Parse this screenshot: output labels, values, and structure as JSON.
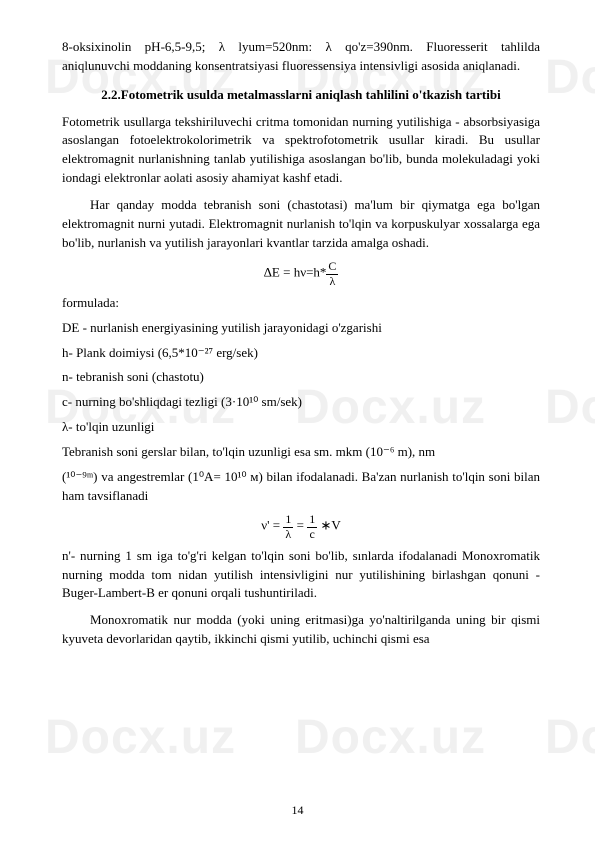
{
  "watermark_text": "Docx.uz",
  "page_number": "14",
  "colors": {
    "text": "#000000",
    "background": "#ffffff",
    "watermark": "rgba(128,128,128,0.12)"
  },
  "typography": {
    "body_font": "Times New Roman",
    "body_size_pt": 13,
    "watermark_font": "Arial",
    "watermark_size_pt": 48
  },
  "p1": "8-oksixinolin pH-6,5-9,5; λ lyum=520nm: λ qo'z=390nm. Fluoresserit tahlilda aniqlunuvchi moddaning konsentratsiyasi fluoressensiya intensivligi asosida aniqlanadi.",
  "heading": "2.2.Fotometrik usulda metalmasslarni aniqlash tahlilini o'tkazish tartibi",
  "p2": "Fotometrik usullarga tekshiriluvechi critma tomonidan nurning yutilishiga - absorbsiyasiga asoslangan fotoelektrokolorimetrik va spektrofotometrik usullar kiradi. Bu usullar elektromagnit nurlanishning tanlab yutilishiga asoslangan bo'lib, bunda molekuladagi yoki iondagi elektronlar aolati asosiy ahamiyat kashf etadi.",
  "p3": "Har qanday modda tebranish soni (chastotasi) ma'lum bir qiymatga ega bo'lgan elektromagnit nurni yutadi. Elektromagnit nurlanish to'lqin va korpuskulyar xossalarga ega bo'lib, nurlanish va yutilish jarayonlari kvantlar tarzida amalga oshadi.",
  "formula1_prefix": "ΔE = hν=h*",
  "formula1_num": "C",
  "formula1_den": "λ",
  "label_formula": "formulada:",
  "def1": "DE - nurlanish energiyasining yutilish jarayonidagi o'zgarishi",
  "def2": "h- Plank doimiysi (6,5*10⁻²⁷ erg/sek)",
  "def3": "n- tebranish soni (chastotu)",
  "def4": "c- nurning bo'shliqdagi tezligi (3·10¹⁰ sm/sek)",
  "def5": "λ- to'lqin uzunligi",
  "def6": "Tebranish soni gerslar bilan, to'lqin uzunligi esa sm. mkm (10⁻⁶ m), nm",
  "def7": "(¹⁰⁻⁹ᵐ) va angestremlar (1⁰A= 10¹⁰ м) bilan ifodalanadi. Ba'zan nurlanish to'lqin soni bilan ham tavsiflanadi",
  "formula2_lhs": "ν' =",
  "formula2_f1_num": "1",
  "formula2_f1_den": "λ",
  "formula2_eq": "=",
  "formula2_f2_num": "1",
  "formula2_f2_den": "c",
  "formula2_suffix": "∗V",
  "p4": "n'- nurning 1 sm iga to'g'ri kelgan to'lqin soni bo'lib, sınlarda ifodalanadi Monoxromatik nurning modda tom nidan yutilish intensivligini nur yutilishining birlashgan qonuni - Buger-Lambert-B er qonuni orqali tushuntiriladi.",
  "p5": "Monoxromatik nur modda (yoki uning eritmasi)ga yo'naltirilganda uning bir qismi kyuveta devorlaridan qaytib, ikkinchi qismi yutilib, uchinchi qismi esa"
}
